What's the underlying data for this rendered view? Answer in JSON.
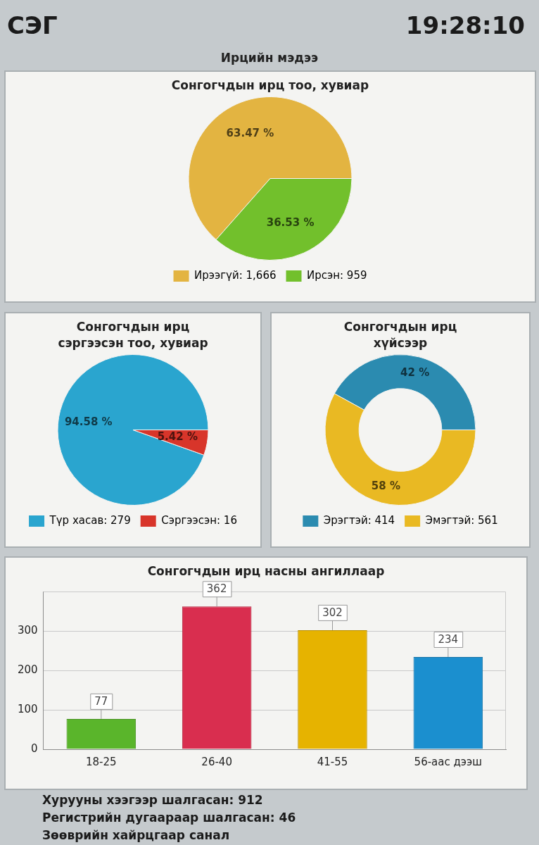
{
  "chart_data": [
    {
      "type": "other",
      "title": "Ирцийн мэдээ",
      "annotations": [
        "СЭГ",
        "19:28:10"
      ]
    },
    {
      "type": "pie",
      "title": "Сонгогчдын ирц тоо, хувиар",
      "categories": [
        "Ирээгүй: 1,666",
        "Ирсэн: 959"
      ],
      "values": [
        63.47,
        36.53
      ],
      "colors": [
        "#e3b441",
        "#72c02c"
      ],
      "value_labels": [
        "63.47 %",
        "36.53 %"
      ],
      "legend": "bottom"
    },
    {
      "type": "pie",
      "title": "Сонгогчдын ирц сэргээсэн тоо, хувиар",
      "categories": [
        "Түр хасав: 279",
        "Сэргээсэн: 16"
      ],
      "values": [
        94.58,
        5.42
      ],
      "colors": [
        "#2aa5cf",
        "#d8352a"
      ],
      "value_labels": [
        "94.58 %",
        "5.42 %"
      ],
      "legend": "bottom"
    },
    {
      "type": "donut",
      "title": "Сонгогчдын ирц хүйсээр",
      "categories": [
        "Эрэгтэй: 414",
        "Эмэгтэй: 561"
      ],
      "values": [
        42,
        58
      ],
      "colors": [
        "#2b8bb0",
        "#e9b923"
      ],
      "value_labels": [
        "42 %",
        "58 %"
      ],
      "legend": "bottom"
    },
    {
      "type": "bar",
      "title": "Сонгогчдын ирц насны ангиллаар",
      "categories": [
        "18-25",
        "26-40",
        "41-55",
        "56-аас дээш"
      ],
      "values": [
        77,
        362,
        302,
        234
      ],
      "colors": [
        "#5ab52b",
        "#d92e4f",
        "#e6b300",
        "#1b8fcf"
      ],
      "ylim": [
        0,
        400
      ],
      "yticks": [
        0,
        100,
        200,
        300
      ],
      "grid": "y",
      "data_labels": true
    },
    {
      "type": "other",
      "annotations": [
        "Хурууны хээгээр шалгасан: 912",
        "Регистрийн дугаараар шалгасан: 46",
        "Зөөврийн хайрцгаар санал"
      ]
    }
  ]
}
